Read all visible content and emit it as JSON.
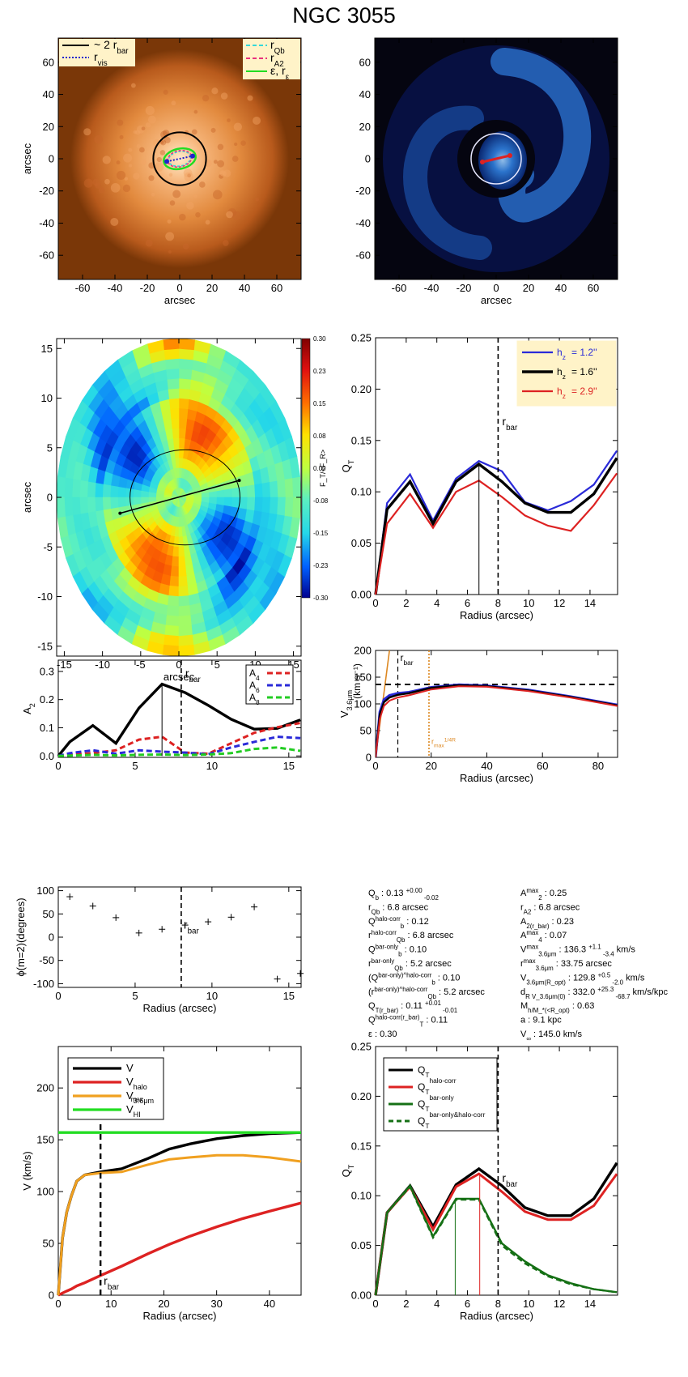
{
  "title": "NGC 3055",
  "chart_data": [
    {
      "id": "img-left",
      "type": "image",
      "xlabel": "arcsec",
      "ylabel": "arcsec",
      "xlim": [
        -75,
        75
      ],
      "ylim": [
        -75,
        75
      ],
      "xticks": [
        -60,
        -40,
        -20,
        0,
        20,
        40,
        60
      ],
      "yticks": [
        -60,
        -40,
        -20,
        0,
        20,
        40,
        60
      ],
      "legend_left": [
        {
          "label": "~ 2 r",
          "sub": "bar",
          "color": "#000000",
          "style": "solid"
        },
        {
          "label": "r",
          "sub": "vis",
          "color": "#2222cc",
          "style": "dotted"
        }
      ],
      "legend_right": [
        {
          "label": "r",
          "sub": "Qb",
          "color": "#35d8d8",
          "style": "dashed"
        },
        {
          "label": "r",
          "sub": "A2",
          "color": "#e8327d",
          "style": "dashed"
        },
        {
          "label": "ε, r",
          "sub": "ε",
          "color": "#22dd22",
          "style": "solid"
        }
      ],
      "colors": {
        "background": "#7a3708",
        "disk": "#e28a3e",
        "core": "#ffe9c8"
      }
    },
    {
      "id": "img-right",
      "type": "image",
      "xlabel": "arcsec",
      "ylabel": "",
      "xlim": [
        -75,
        75
      ],
      "ylim": [
        -75,
        75
      ],
      "xticks": [
        -60,
        -40,
        -20,
        0,
        20,
        40,
        60
      ],
      "yticks": [
        -60,
        -40,
        -20,
        0,
        20,
        40,
        60
      ],
      "colors": {
        "background": "#050510",
        "arms": "#2f7fe0",
        "glow": "#9fd0ff"
      }
    },
    {
      "id": "force-map",
      "type": "heatmap",
      "xlabel": "arcsec",
      "ylabel": "arcsec",
      "xlim": [
        -16,
        16
      ],
      "ylim": [
        -16,
        16
      ],
      "xticks": [
        -15,
        -10,
        -5,
        0,
        5,
        10,
        15
      ],
      "yticks": [
        -15,
        -10,
        -5,
        0,
        5,
        10,
        15
      ],
      "colorbar_label": "F_T/<F_R>",
      "colorbar_ticks": [
        "0.30",
        "0.23",
        "0.15",
        "0.08",
        "0.00",
        "-0.08",
        "-0.15",
        "-0.23",
        "-0.30"
      ],
      "colorscale": [
        "#00008f",
        "#0060ff",
        "#25d8e8",
        "#5cf0c0",
        "#bfff40",
        "#ffe000",
        "#ff7000",
        "#e01010",
        "#800000"
      ]
    },
    {
      "id": "qt-profile",
      "type": "line",
      "xlabel": "Radius (arcsec)",
      "ylabel": "Q_T",
      "xlim": [
        0,
        15.8
      ],
      "ylim": [
        0,
        0.25
      ],
      "xticks": [
        0,
        2,
        4,
        6,
        8,
        10,
        12,
        14
      ],
      "yticks": [
        0.0,
        0.05,
        0.1,
        0.15,
        0.2,
        0.25
      ],
      "x": [
        0,
        0.75,
        2.25,
        3.75,
        5.25,
        6.75,
        8.25,
        9.75,
        11.25,
        12.75,
        14.25,
        15.75
      ],
      "series": [
        {
          "name": "h_z= 1.2''",
          "color": "#2a2ad8",
          "width": 2.2,
          "values": [
            0,
            0.089,
            0.117,
            0.072,
            0.113,
            0.13,
            0.12,
            0.09,
            0.082,
            0.091,
            0.107,
            0.14
          ]
        },
        {
          "name": "h_z= 1.6''",
          "color": "#000000",
          "width": 3.4,
          "values": [
            0,
            0.083,
            0.11,
            0.069,
            0.11,
            0.127,
            0.11,
            0.089,
            0.08,
            0.08,
            0.098,
            0.133
          ]
        },
        {
          "name": "h_z= 2.9''",
          "color": "#dd2222",
          "width": 2.2,
          "values": [
            0,
            0.069,
            0.098,
            0.065,
            0.1,
            0.111,
            0.095,
            0.077,
            0.067,
            0.062,
            0.087,
            0.118
          ]
        }
      ],
      "vline_dashed": 8.0,
      "vline_thin": 6.75,
      "annotation": "r_bar"
    },
    {
      "id": "fourier-amp",
      "type": "line",
      "xlabel": "",
      "ylabel": "A_2",
      "xlim": [
        0,
        15.8
      ],
      "ylim": [
        -0.005,
        0.34
      ],
      "xticks": [
        0,
        5,
        10,
        15
      ],
      "yticks": [
        0.0,
        0.1,
        0.2,
        0.3
      ],
      "x": [
        0,
        0.75,
        2.25,
        3.75,
        5.25,
        6.75,
        8.25,
        9.75,
        11.25,
        12.75,
        14.25,
        15.75
      ],
      "series": [
        {
          "name": "A_2",
          "color": "#000000",
          "style": "solid",
          "width": 3.4,
          "values": [
            0,
            0.05,
            0.108,
            0.045,
            0.17,
            0.255,
            0.225,
            0.18,
            0.13,
            0.095,
            0.098,
            0.128
          ]
        },
        {
          "name": "A_4",
          "color": "#dd2222",
          "style": "dashed",
          "width": 3,
          "values": [
            0,
            0.004,
            0.01,
            0.02,
            0.058,
            0.068,
            0.012,
            0.008,
            0.045,
            0.082,
            0.102,
            0.117
          ]
        },
        {
          "name": "A_6",
          "color": "#2a2ad8",
          "style": "dashed",
          "width": 3,
          "values": [
            0,
            0.01,
            0.02,
            0.008,
            0.02,
            0.015,
            0.012,
            0.006,
            0.03,
            0.05,
            0.068,
            0.063
          ]
        },
        {
          "name": "A_8",
          "color": "#22cc22",
          "style": "dashed",
          "width": 3,
          "values": [
            0,
            0.001,
            0.004,
            0.002,
            0.004,
            0.005,
            0.003,
            0.005,
            0.01,
            0.025,
            0.03,
            0.018
          ]
        }
      ],
      "legend_entries": [
        {
          "name": "A_4",
          "color": "#dd2222"
        },
        {
          "name": "A_6",
          "color": "#2a2ad8"
        },
        {
          "name": "A_8",
          "color": "#22cc22"
        }
      ],
      "vline_dashed": 8.0,
      "vline_thin": 6.75,
      "annotation": "r_bar"
    },
    {
      "id": "rotation-curve",
      "type": "line",
      "xlabel": "Radius (arcsec)",
      "ylabel": "V_3.6μm (km s^-1)",
      "xlim": [
        0,
        87
      ],
      "ylim": [
        0,
        200
      ],
      "xticks": [
        0,
        20,
        40,
        60,
        80
      ],
      "yticks": [
        0,
        50,
        100,
        150,
        200
      ],
      "x": [
        0,
        1.5,
        3,
        5,
        8,
        12,
        20,
        30,
        40,
        55,
        70,
        87
      ],
      "series": [
        {
          "name": "V_3.6μm",
          "color": "#2a2ad8",
          "width": 3,
          "values": [
            0,
            85,
            108,
            116,
            120,
            122,
            131,
            136,
            134,
            126,
            114,
            98
          ]
        },
        {
          "name": "V_3.6μm (thick)",
          "color": "#000000",
          "width": 2.4,
          "values": [
            0,
            80,
            103,
            112,
            117,
            120,
            130,
            135,
            133,
            125,
            113,
            97
          ]
        },
        {
          "name": "V_3.6μm (thin)",
          "color": "#dd2222",
          "width": 2,
          "values": [
            0,
            72,
            96,
            106,
            112,
            116,
            127,
            133,
            132,
            124,
            112,
            96
          ]
        }
      ],
      "solid_body": {
        "color": "#dd8822",
        "x": [
          0,
          5
        ],
        "y": [
          0,
          200
        ]
      },
      "hline_dashed": 136.3,
      "vline_dashed": 8.0,
      "vline_dotted": 19.2,
      "annotation": "r_bar",
      "annotation2": "r_max^{1/4R_max}"
    },
    {
      "id": "phase",
      "type": "scatter",
      "xlabel": "Radius (arcsec)",
      "ylabel": "ϕ(m=2)(degrees)",
      "xlim": [
        0,
        15.8
      ],
      "ylim": [
        -108,
        108
      ],
      "xticks": [
        0,
        5,
        10,
        15
      ],
      "yticks": [
        -100,
        -50,
        0,
        50,
        100
      ],
      "points": [
        [
          0.75,
          87
        ],
        [
          2.25,
          67
        ],
        [
          3.75,
          42
        ],
        [
          5.25,
          9
        ],
        [
          6.75,
          17
        ],
        [
          8.25,
          26
        ],
        [
          9.75,
          33
        ],
        [
          11.25,
          43
        ],
        [
          12.75,
          65
        ],
        [
          14.25,
          -90
        ],
        [
          15.75,
          -78
        ]
      ],
      "vline_dashed": 8.0,
      "annotation": "r_bar"
    },
    {
      "id": "params",
      "type": "table",
      "left": [
        "Q_b :  0.13 +0.00 -0.02",
        "r_Qb :  6.8  arcsec",
        "Q_b^halo-corr :  0.12",
        "r_Qb^halo-corr :  6.8 arcsec",
        "Q_b^bar-only :  0.10",
        "r_Qb^bar-only :  5.2 arcsec",
        "(Q_b^bar-only)^halo-corr :  0.10",
        "(r_Qb^bar-only)^halo-corr :  5.2 arcsec",
        "Q_T(r_bar) :  0.11 +0.01 -0.01",
        "Q_T^halo-corr(r_bar) :  0.11",
        "ε :  0.30"
      ],
      "right": [
        "A_2^max :  0.25",
        "r_A2 :  6.8 arcsec",
        "A_2(r_bar) :  0.23",
        "A_4^max :  0.07",
        "V_3.6μm^max :  136.3 +1.1 -3.4 km/s",
        "r_3.6μm^max :  33.75 arcsec",
        "V_3.6μm(R_opt) :  129.8 +0.5 -2.0 km/s",
        "d_R V_3.6μm(0) :  332.0 +25.3 -68.7 km/s/kpc",
        "M_h/M_*(<R_opt) :  0.63",
        "a :  9.1 kpc",
        "V_∞ :  145.0 km/s"
      ]
    },
    {
      "id": "velocity-model",
      "type": "line",
      "xlabel": "Radius (arcsec)",
      "ylabel": "V (km/s)",
      "xlim": [
        0,
        46
      ],
      "ylim": [
        0,
        240
      ],
      "xticks": [
        0,
        10,
        20,
        30,
        40
      ],
      "yticks": [
        0,
        50,
        100,
        150,
        200
      ],
      "x": [
        0,
        0.8,
        1.6,
        2.5,
        3.5,
        5,
        8,
        12,
        17,
        21,
        25,
        30,
        35,
        40,
        46
      ],
      "series": [
        {
          "name": "V",
          "color": "#000000",
          "width": 3.4,
          "values": [
            0,
            55,
            80,
            96,
            110,
            116,
            119,
            122,
            132,
            141,
            146,
            151,
            154,
            156,
            157
          ]
        },
        {
          "name": "V_halo",
          "color": "#dd2222",
          "width": 3.4,
          "values": [
            0,
            2,
            4,
            6,
            9,
            12,
            19,
            28,
            40,
            49,
            57,
            66,
            74,
            81,
            89
          ]
        },
        {
          "name": "V_3.6μm",
          "color": "#f0a020",
          "width": 3,
          "values": [
            0,
            55,
            80,
            96,
            110,
            116,
            118,
            119,
            126,
            131,
            133,
            135,
            135,
            133,
            129
          ]
        },
        {
          "name": "V_HI^max",
          "color": "#22dd22",
          "width": 3.4,
          "values": [
            157,
            157,
            157,
            157,
            157,
            157,
            157,
            157,
            157,
            157,
            157,
            157,
            157,
            157,
            157
          ]
        }
      ],
      "vline_dashed": 8.0,
      "annotation": "r_bar"
    },
    {
      "id": "qt-corrected",
      "type": "line",
      "xlabel": "Radius (arcsec)",
      "ylabel": "Q_T",
      "xlim": [
        0,
        15.8
      ],
      "ylim": [
        0,
        0.25
      ],
      "xticks": [
        0,
        2,
        4,
        6,
        8,
        10,
        12,
        14
      ],
      "yticks": [
        0.0,
        0.05,
        0.1,
        0.15,
        0.2,
        0.25
      ],
      "x": [
        0,
        0.75,
        2.25,
        3.75,
        5.25,
        6.75,
        8.25,
        9.75,
        11.25,
        12.75,
        14.25,
        15.75
      ],
      "series": [
        {
          "name": "Q_T",
          "color": "#000000",
          "style": "solid",
          "width": 3.4,
          "values": [
            0,
            0.083,
            0.11,
            0.069,
            0.111,
            0.127,
            0.11,
            0.088,
            0.08,
            0.08,
            0.097,
            0.133
          ]
        },
        {
          "name": "Q_T^halo-corr",
          "color": "#dd2222",
          "style": "solid",
          "width": 3,
          "values": [
            0,
            0.083,
            0.109,
            0.066,
            0.109,
            0.122,
            0.104,
            0.084,
            0.076,
            0.076,
            0.09,
            0.122
          ]
        },
        {
          "name": "Q_T^bar-only",
          "color": "#157015",
          "style": "solid",
          "width": 2.4,
          "values": [
            0,
            0.083,
            0.11,
            0.059,
            0.097,
            0.097,
            0.052,
            0.034,
            0.02,
            0.012,
            0.006,
            0.003
          ]
        },
        {
          "name": "Q_T^bar-only&halo-corr",
          "color": "#157015",
          "style": "dashed",
          "width": 2.4,
          "values": [
            0,
            0.083,
            0.109,
            0.058,
            0.096,
            0.096,
            0.05,
            0.032,
            0.019,
            0.011,
            0.006,
            0.003
          ]
        }
      ],
      "vline_dashed": 8.0,
      "vline_thin_green": 5.2,
      "vline_thin_red": 6.8,
      "annotation": "r_bar"
    }
  ]
}
